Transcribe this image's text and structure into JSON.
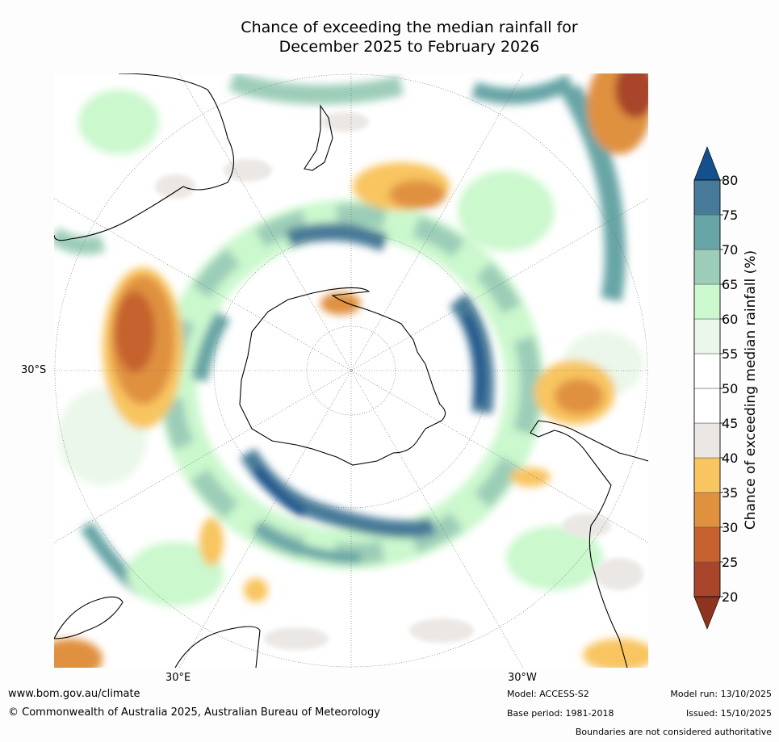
{
  "title_line1": "Chance of exceeding the median rainfall for",
  "title_line2": "December 2025 to February 2026",
  "axis_labels": {
    "lat_30s": "30°S",
    "lon_30e": "30°E",
    "lon_30w": "30°W"
  },
  "colorbar": {
    "title": "Chance of exceeding median rainfall (%)",
    "ticks": [
      "20",
      "25",
      "30",
      "35",
      "40",
      "45",
      "50",
      "55",
      "60",
      "65",
      "70",
      "75",
      "80"
    ],
    "colors": [
      "#a8452a",
      "#c5622f",
      "#e0913f",
      "#f8c560",
      "#ebe7e4",
      "#ffffff",
      "#ffffff",
      "#eaf7ea",
      "#cbf8cd",
      "#9ccdb8",
      "#68a5a6",
      "#467a98"
    ],
    "under_color": "#8d331e",
    "over_color": "#14508c"
  },
  "footer": {
    "url": "www.bom.gov.au/climate",
    "copyright": "© Commonwealth of Australia 2025, Australian Bureau of Meteorology",
    "model": "Model: ACCESS-S2",
    "base_period": "Base period: 1981-2018",
    "model_run": "Model run: 13/10/2025",
    "issued": "Issued: 15/10/2025",
    "disclaimer": "Boundaries are not considered authoritative"
  }
}
